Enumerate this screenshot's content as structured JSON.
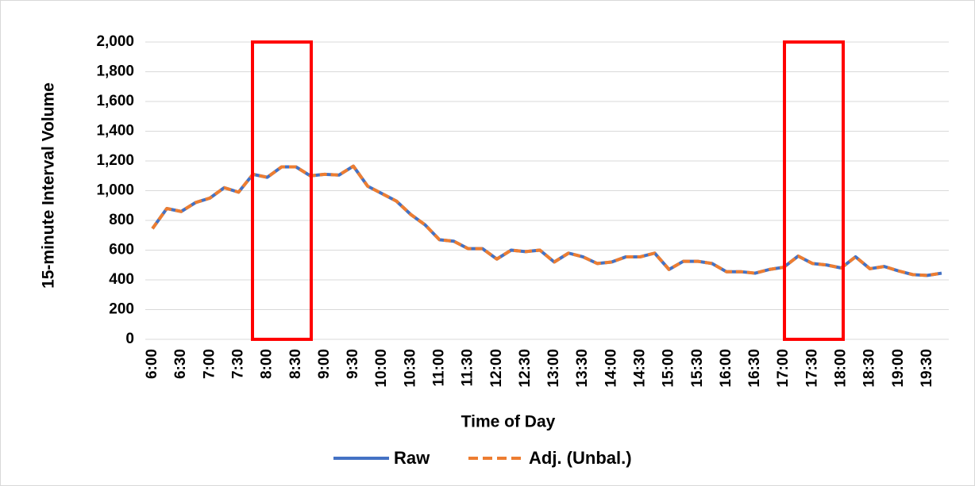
{
  "chart_data": {
    "type": "line",
    "x_label": "Time of Day",
    "y_label": "15-minute Interval Volume",
    "categories": [
      "6:00",
      null,
      "6:30",
      null,
      "7:00",
      null,
      "7:30",
      null,
      "8:00",
      null,
      "8:30",
      null,
      "9:00",
      null,
      "9:30",
      null,
      "10:00",
      null,
      "10:30",
      null,
      "11:00",
      null,
      "11:30",
      null,
      "12:00",
      null,
      "12:30",
      null,
      "13:00",
      null,
      "13:30",
      null,
      "14:00",
      null,
      "14:30",
      null,
      "15:00",
      null,
      "15:30",
      null,
      "16:00",
      null,
      "16:30",
      null,
      "17:00",
      null,
      "17:30",
      null,
      "18:00",
      null,
      "18:30",
      null,
      "19:00",
      null,
      "19:30",
      null
    ],
    "series": [
      {
        "name": "Raw",
        "color": "#4472c4",
        "dashed": false,
        "values": [
          745,
          880,
          860,
          920,
          950,
          1020,
          990,
          1110,
          1090,
          1160,
          1160,
          1100,
          1110,
          1105,
          1165,
          1030,
          980,
          930,
          840,
          770,
          670,
          660,
          610,
          610,
          540,
          600,
          590,
          600,
          520,
          580,
          555,
          510,
          520,
          555,
          555,
          580,
          470,
          525,
          525,
          510,
          455,
          455,
          445,
          470,
          485,
          560,
          510,
          500,
          480,
          555,
          475,
          490,
          460,
          435,
          430,
          445
        ]
      },
      {
        "name": "Adj. (Unbal.)",
        "color": "#ed7d31",
        "dashed": true,
        "values": [
          745,
          880,
          860,
          920,
          950,
          1020,
          990,
          1110,
          1090,
          1160,
          1160,
          1100,
          1110,
          1105,
          1165,
          1030,
          980,
          930,
          840,
          770,
          670,
          660,
          610,
          610,
          540,
          600,
          590,
          600,
          520,
          580,
          555,
          510,
          520,
          555,
          555,
          580,
          470,
          525,
          525,
          510,
          455,
          455,
          445,
          470,
          485,
          560,
          510,
          500,
          480,
          555,
          475,
          490,
          460,
          435,
          430,
          445
        ]
      }
    ],
    "ylim": [
      0,
      2000
    ],
    "yticks": [
      0,
      200,
      400,
      600,
      800,
      {
        "value": 1000,
        "label": "1,000"
      },
      {
        "value": 1200,
        "label": "1,200"
      },
      {
        "value": 1400,
        "label": "1,400"
      },
      {
        "value": 1600,
        "label": "1,600"
      },
      {
        "value": 1800,
        "label": "1,800"
      },
      {
        "value": 2000,
        "label": "2,000"
      }
    ],
    "grid": true,
    "legend": "bottom"
  }
}
